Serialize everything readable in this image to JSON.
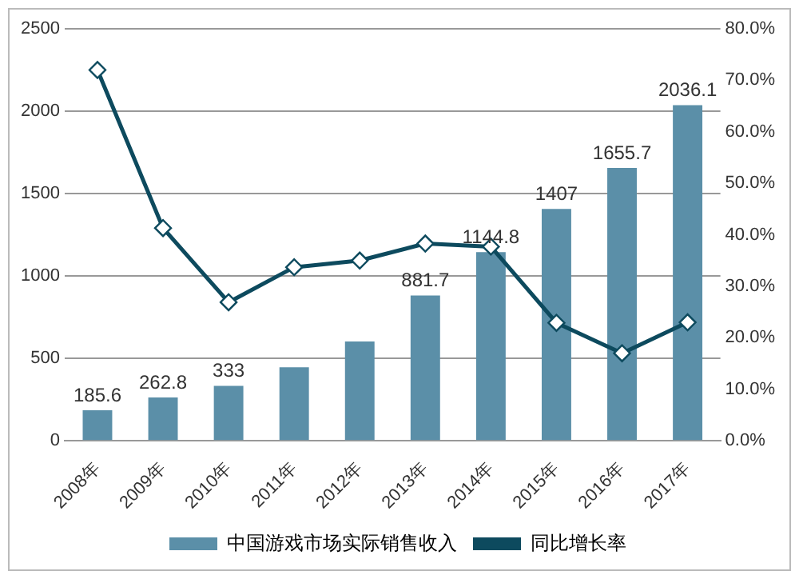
{
  "chart_data": {
    "type": "bar",
    "categories": [
      "2008年",
      "2009年",
      "2010年",
      "2011年",
      "2012年",
      "2013年",
      "2014年",
      "2015年",
      "2016年",
      "2017年"
    ],
    "series": [
      {
        "name": "中国游戏市场实际销售收入",
        "color": "#5b8fa8",
        "values": [
          185.6,
          262.8,
          333,
          446,
          603,
          881.7,
          1144.8,
          1407,
          1655.7,
          2036.1
        ],
        "value_labels": [
          "185.6",
          "262.8",
          "333",
          null,
          null,
          "881.7",
          "1144.8",
          "1407",
          "1655.7",
          "2036.1"
        ]
      },
      {
        "name": "同比增长率",
        "type": "line",
        "axis": "y2",
        "color": "#0d4a5e",
        "marker": "diamond",
        "values": [
          72,
          41.3,
          26.9,
          33.7,
          35,
          38.3,
          37.7,
          22.9,
          17,
          23
        ]
      }
    ],
    "ylim": [
      0,
      2500
    ],
    "yticks": [
      0,
      500,
      1000,
      1500,
      2000,
      2500
    ],
    "y2lim": [
      0,
      80
    ],
    "y2ticks": [
      {
        "value": 0,
        "label": "0.0%"
      },
      {
        "value": 10,
        "label": "10.0%"
      },
      {
        "value": 20,
        "label": "20.0%"
      },
      {
        "value": 30,
        "label": "30.0%"
      },
      {
        "value": 40,
        "label": "40.0%"
      },
      {
        "value": 50,
        "label": "50.0%"
      },
      {
        "value": 60,
        "label": "60.0%"
      },
      {
        "value": 70,
        "label": "70.0%"
      },
      {
        "value": 80,
        "label": "80.0%"
      }
    ],
    "grid": "y",
    "legend": "bottom"
  }
}
